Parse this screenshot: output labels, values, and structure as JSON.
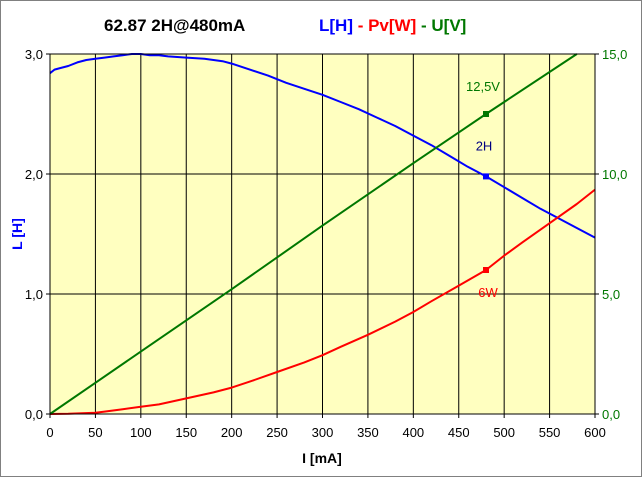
{
  "chart_data": {
    "type": "line",
    "title": {
      "main": "62.87  2H@480mA",
      "parts": [
        {
          "text": "L[H]",
          "color": "#0000ff"
        },
        {
          "text": " - ",
          "color": "#ff0000"
        },
        {
          "text": "Pv[W]",
          "color": "#ff0000"
        },
        {
          "text": " - ",
          "color": "#007700"
        },
        {
          "text": "U[V]",
          "color": "#007700"
        }
      ]
    },
    "xlabel": "I [mA]",
    "ylabel": "L [H]",
    "xlim": [
      0,
      600
    ],
    "ylim": [
      0,
      3
    ],
    "y2lim": [
      0,
      15
    ],
    "x_ticks": [
      "0",
      "50",
      "100",
      "150",
      "200",
      "250",
      "300",
      "350",
      "400",
      "450",
      "500",
      "550",
      "600"
    ],
    "y_ticks": [
      "0,0",
      "1,0",
      "2,0",
      "3,0"
    ],
    "y2_ticks": [
      "0,0",
      "5,0",
      "10,0",
      "15,0"
    ],
    "grid": true,
    "background": "#ffffc0",
    "series": [
      {
        "name": "L[H]",
        "axis": "left",
        "color": "#0000ff",
        "x": [
          0,
          5,
          10,
          20,
          30,
          40,
          50,
          60,
          70,
          80,
          90,
          100,
          110,
          120,
          130,
          150,
          170,
          190,
          200,
          220,
          240,
          260,
          280,
          300,
          320,
          340,
          360,
          380,
          400,
          420,
          440,
          460,
          480,
          500,
          520,
          540,
          560,
          580,
          600
        ],
        "y": [
          2.84,
          2.87,
          2.88,
          2.9,
          2.93,
          2.95,
          2.96,
          2.97,
          2.98,
          2.99,
          3.0,
          3.0,
          2.99,
          2.99,
          2.98,
          2.97,
          2.96,
          2.94,
          2.92,
          2.87,
          2.82,
          2.76,
          2.71,
          2.66,
          2.6,
          2.54,
          2.47,
          2.4,
          2.32,
          2.24,
          2.15,
          2.06,
          1.98,
          1.89,
          1.8,
          1.71,
          1.63,
          1.55,
          1.47
        ]
      },
      {
        "name": "Pv[W]",
        "axis": "right",
        "color": "#ff0000",
        "x": [
          0,
          20,
          50,
          60,
          80,
          100,
          120,
          150,
          180,
          200,
          220,
          250,
          280,
          300,
          320,
          350,
          380,
          400,
          420,
          450,
          480,
          500,
          520,
          550,
          580,
          600
        ],
        "y": [
          0,
          0.01,
          0.05,
          0.1,
          0.2,
          0.3,
          0.4,
          0.65,
          0.9,
          1.1,
          1.35,
          1.75,
          2.15,
          2.45,
          2.8,
          3.3,
          3.85,
          4.25,
          4.7,
          5.35,
          6.0,
          6.6,
          7.15,
          7.95,
          8.75,
          9.35
        ]
      },
      {
        "name": "U[V]",
        "axis": "right",
        "color": "#007700",
        "x": [
          0,
          100,
          200,
          300,
          400,
          480,
          500,
          580
        ],
        "y": [
          0,
          2.6,
          5.2,
          7.85,
          10.45,
          12.5,
          13.0,
          15.0
        ]
      }
    ],
    "markers": [
      {
        "series": "L[H]",
        "x": 480,
        "y": 1.98,
        "axis": "left",
        "label": "2H",
        "label_color": "#000080"
      },
      {
        "series": "U[V]",
        "x": 480,
        "y": 12.5,
        "axis": "right",
        "label": "12,5V",
        "label_color": "#007700"
      },
      {
        "series": "Pv[W]",
        "x": 480,
        "y": 6.0,
        "axis": "right",
        "label": "6W",
        "label_color": "#ff0000"
      }
    ]
  }
}
